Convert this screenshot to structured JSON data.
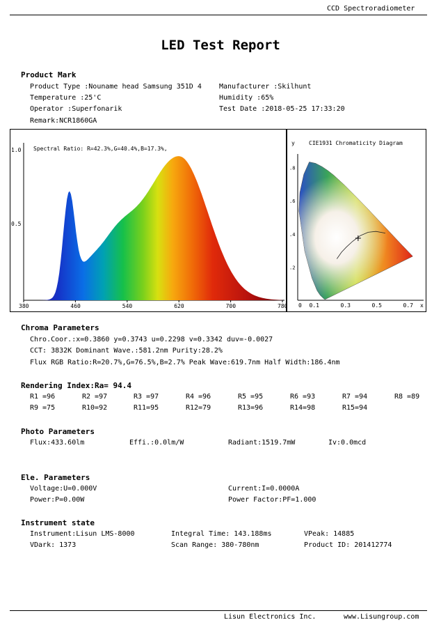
{
  "header": {
    "device": "CCD Spectroradiometer"
  },
  "title": "LED Test Report",
  "product_mark": {
    "heading": "Product Mark",
    "product_type": "Product Type :Nouname head Samsung 351D 4",
    "manufacturer": "Manufacturer :Skilhunt",
    "temperature": "Temperature :25'C",
    "humidity": "Humidity :65%",
    "operator": "Operator :Superfonarik",
    "test_date": "Test Date :2018-05-25 17:33:20",
    "remark": "Remark:NCR1860GA"
  },
  "spectrum": {
    "label": "Spectral Ratio:  R=42.3%,G=40.4%,B=17.3%,",
    "ytick_top": "1.0",
    "ytick_mid": "0.5",
    "xticks": [
      "380",
      "460",
      "540",
      "620",
      "700",
      "780"
    ]
  },
  "cie": {
    "title": "CIE1931 Chromaticity Diagram",
    "ylabel": "y",
    "xlabel": "x",
    "yticks": [
      ".8",
      ".6",
      ".4",
      ".2"
    ],
    "xticks": [
      "0",
      "0.1",
      "0.3",
      "0.5",
      "0.7"
    ],
    "point": {
      "x": 0.386,
      "y": 0.3743
    }
  },
  "chroma": {
    "heading": "Chroma Parameters",
    "line1": "Chro.Coor.:x=0.3860  y=0.3743     u=0.2298  v=0.3342     duv=-0.0027",
    "line2": "CCT: 3832K   Dominant Wave.:581.2nm   Purity:28.2%",
    "line3": "Flux RGB Ratio:R=20.7%,G=76.5%,B=2.7%   Peak Wave:619.7nm   Half Width:186.4nm"
  },
  "rendering": {
    "heading": "Rendering Index:Ra= 94.4",
    "row1": [
      "R1 =96",
      "R2 =97",
      "R3 =97",
      "R4 =96",
      "R5 =95",
      "R6 =93",
      "R7 =94",
      "R8 =89"
    ],
    "row2": [
      "R9 =75",
      "R10=92",
      "R11=95",
      "R12=79",
      "R13=96",
      "R14=98",
      "R15=94"
    ]
  },
  "photo": {
    "heading": "Photo Parameters",
    "flux": "Flux:433.60lm",
    "effi": "Effi.:0.0lm/W",
    "radiant": "Radiant:1519.7mW",
    "iv": "Iv:0.0mcd"
  },
  "ele": {
    "heading": "Ele. Parameters",
    "voltage": "Voltage:U=0.000V",
    "current": "Current:I=0.0000A",
    "power": "Power:P=0.00W",
    "pf": "Power Factor:PF=1.000"
  },
  "instrument": {
    "heading": "Instrument state",
    "name": "Instrument:Lisun LMS-8000",
    "integral": "Integral Time: 143.188ms",
    "vpeak": "VPeak: 14885",
    "vdark": "VDark: 1373",
    "scan": "Scan Range: 380-780nm",
    "product_id": "Product ID: 201412774"
  },
  "footer": {
    "company": "Lisun Electronics Inc.",
    "website": "www.Lisungroup.com"
  }
}
